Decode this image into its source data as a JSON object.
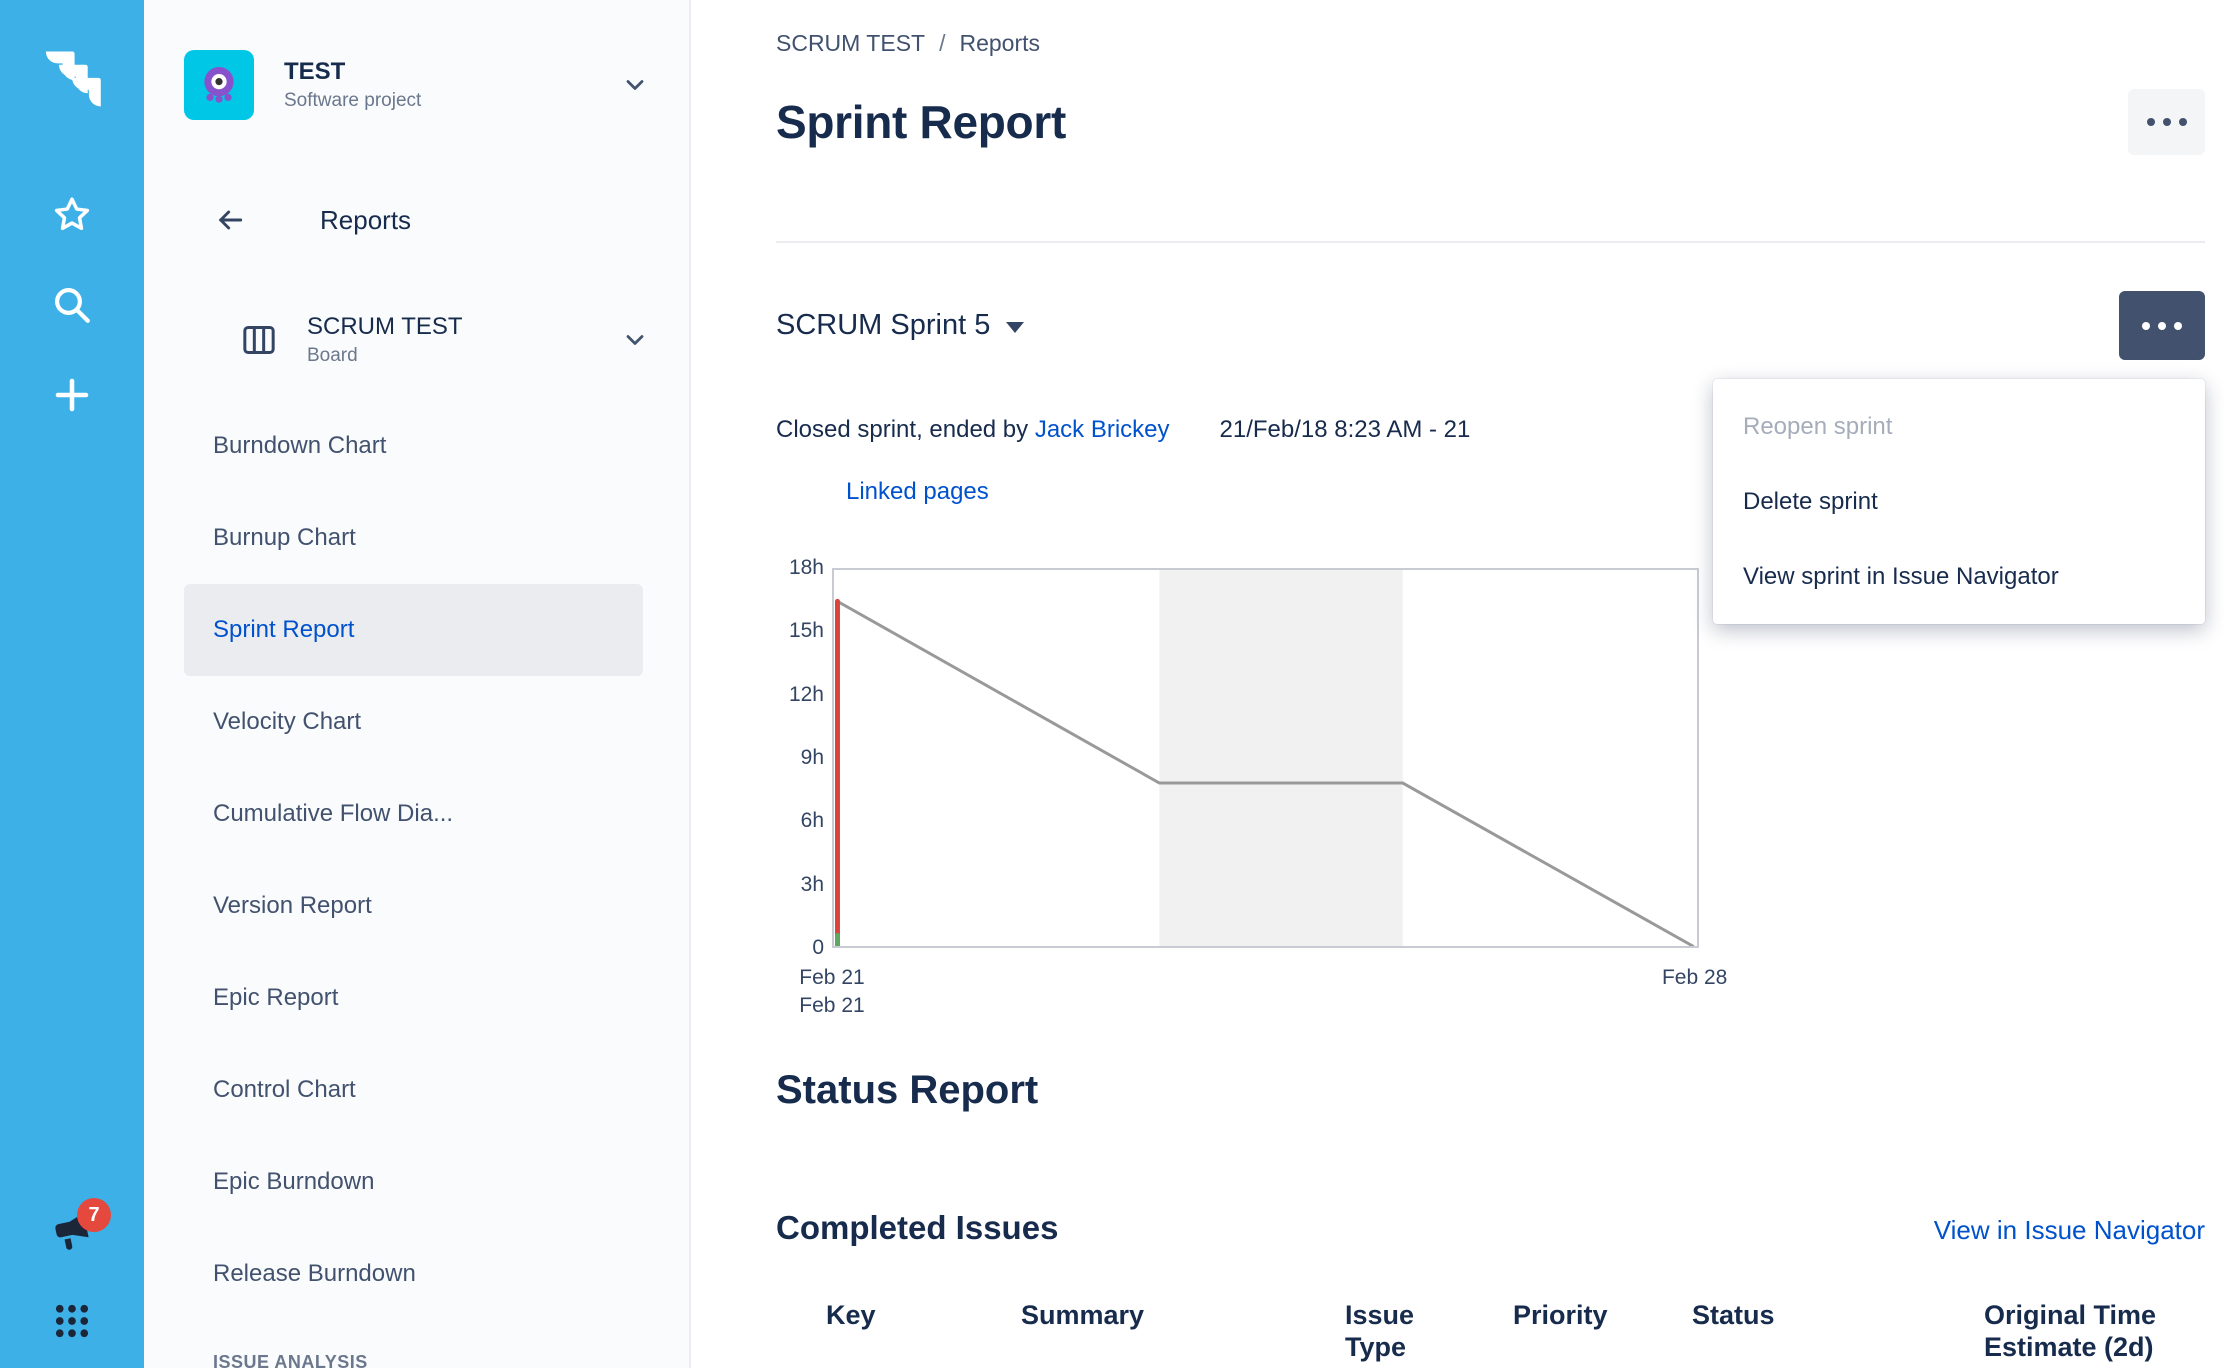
{
  "colors": {
    "rail_blue": "#3CB0E7",
    "link_blue": "#0052CC",
    "selected_bg": "#EBECF0",
    "badge_red": "#E5483C",
    "heading": "#172B4D"
  },
  "rail": {
    "badge_count": "7"
  },
  "sidebar": {
    "project_name": "TEST",
    "project_type": "Software project",
    "back_label": "Reports",
    "board_name": "SCRUM TEST",
    "board_type": "Board",
    "menu_items": [
      {
        "label": "Burndown Chart",
        "selected": false
      },
      {
        "label": "Burnup Chart",
        "selected": false
      },
      {
        "label": "Sprint Report",
        "selected": true
      },
      {
        "label": "Velocity Chart",
        "selected": false
      },
      {
        "label": "Cumulative Flow Dia...",
        "selected": false
      },
      {
        "label": "Version Report",
        "selected": false
      },
      {
        "label": "Epic Report",
        "selected": false
      },
      {
        "label": "Control Chart",
        "selected": false
      },
      {
        "label": "Epic Burndown",
        "selected": false
      },
      {
        "label": "Release Burndown",
        "selected": false
      }
    ],
    "section_label": "ISSUE ANALYSIS"
  },
  "main": {
    "breadcrumb": [
      "SCRUM TEST",
      "Reports"
    ],
    "title": "Sprint Report",
    "sprint_selector": "SCRUM Sprint 5",
    "menu": {
      "items": [
        {
          "label": "Reopen sprint",
          "disabled": true
        },
        {
          "label": "Delete sprint",
          "disabled": false
        },
        {
          "label": "View sprint in Issue Navigator",
          "disabled": false
        }
      ]
    },
    "closed_text": "Closed sprint, ended by",
    "closed_by": "Jack Brickey",
    "date_range": "21/Feb/18 8:23 AM - 21",
    "linked_pages": "Linked pages",
    "status_report_title": "Status Report",
    "completed_issues_title": "Completed Issues",
    "view_in_navigator": "View in Issue Navigator",
    "table_headers": [
      "Key",
      "Summary",
      "Issue Type",
      "Priority",
      "Status",
      "Original Time Estimate (2d)"
    ]
  },
  "chart_data": {
    "type": "line",
    "title": "Sprint burndown",
    "xlabel": "",
    "ylabel": "",
    "ylim": [
      0,
      18
    ],
    "grid": false,
    "legend": "none",
    "y_ticks": [
      "18h",
      "15h",
      "12h",
      "9h",
      "6h",
      "3h",
      "0"
    ],
    "x_labels": [
      {
        "label": "Feb 21",
        "x": 0,
        "row": 0
      },
      {
        "label": "Feb 21",
        "x": 0,
        "row": 1
      },
      {
        "label": "Feb 28",
        "x": 0.995,
        "row": 0
      }
    ],
    "non_working_band": {
      "from": 0.377,
      "to": 0.659,
      "color": "#F1F1F1"
    },
    "series": [
      {
        "name": "remaining-values",
        "color": "#999999",
        "width": 3,
        "points": [
          [
            0.004,
            16.5
          ],
          [
            0.377,
            7.8
          ],
          [
            0.659,
            7.8
          ],
          [
            0.995,
            0
          ]
        ]
      },
      {
        "name": "sprint-start-marker",
        "color": "#D9453D",
        "width": 5,
        "points": [
          [
            0.004,
            16.5
          ],
          [
            0.004,
            0
          ]
        ]
      },
      {
        "name": "completed-marker",
        "color": "#5FA862",
        "width": 5,
        "points": [
          [
            0.004,
            0.5
          ],
          [
            0.004,
            0
          ]
        ]
      }
    ]
  }
}
